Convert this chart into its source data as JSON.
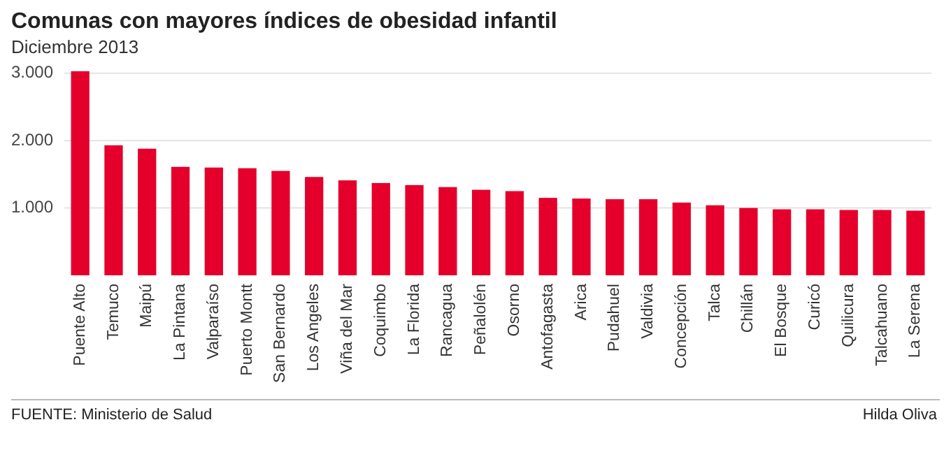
{
  "chart_data": {
    "type": "bar",
    "title": "Comunas con mayores índices de obesidad infantil",
    "subtitle": "Diciembre 2013",
    "categories": [
      "Puente Alto",
      "Temuco",
      "Maipú",
      "La Pintana",
      "Valparaíso",
      "Puerto Montt",
      "San Bernardo",
      "Los Angeles",
      "Viña del Mar",
      "Coquimbo",
      "La Florida",
      "Rancagua",
      "Peñalolén",
      "Osorno",
      "Antofagasta",
      "Arica",
      "Pudahuel",
      "Valdivia",
      "Concepción",
      "Talca",
      "Chillán",
      "El Bosque",
      "Curicó",
      "Quilicura",
      "Talcahuano",
      "La Serena"
    ],
    "values": [
      3030,
      1930,
      1880,
      1610,
      1600,
      1590,
      1550,
      1460,
      1410,
      1370,
      1340,
      1310,
      1270,
      1250,
      1150,
      1140,
      1130,
      1130,
      1080,
      1040,
      1000,
      980,
      980,
      970,
      970,
      960
    ],
    "color": "#e4002b",
    "ylim": [
      0,
      3050
    ],
    "yticks": [
      {
        "value": 1000,
        "label": "1.000"
      },
      {
        "value": 2000,
        "label": "2.000"
      },
      {
        "value": 3000,
        "label": "3.000"
      }
    ],
    "grid": "y",
    "annotations": [
      "FUENTE:  Ministerio de Salud",
      "Hilda Oliva"
    ]
  }
}
